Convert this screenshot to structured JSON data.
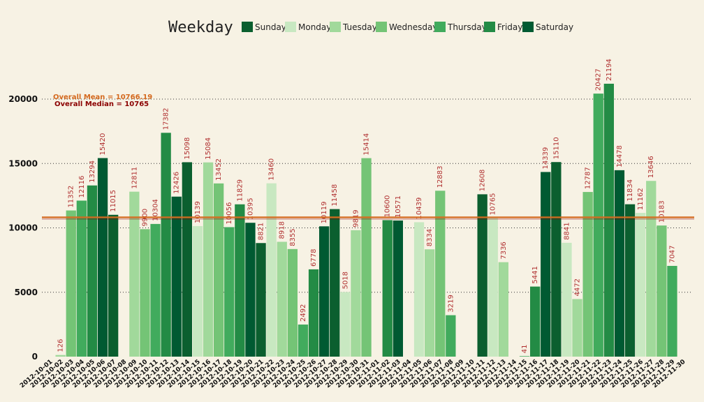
{
  "chart_data": {
    "type": "bar",
    "legend_title": "Weekday",
    "ylim": [
      0,
      23000
    ],
    "yticks": [
      0,
      5000,
      10000,
      15000,
      20000
    ],
    "grid": "horizontal-dotted",
    "legend_position": "top",
    "colors": {
      "Sunday": "#0b5f2f",
      "Monday": "#c8e8c1",
      "Tuesday": "#a1d99b",
      "Wednesday": "#74c476",
      "Thursday": "#41ab5d",
      "Friday": "#238b45",
      "Saturday": "#005a32",
      "mean_line": "#d4691e",
      "median_line": "#8b0000",
      "label_color": "#b03030"
    },
    "series": [
      {
        "name": "Sunday"
      },
      {
        "name": "Monday"
      },
      {
        "name": "Tuesday"
      },
      {
        "name": "Wednesday"
      },
      {
        "name": "Thursday"
      },
      {
        "name": "Friday"
      },
      {
        "name": "Saturday"
      }
    ],
    "categories": [
      "2012-10-01",
      "2012-10-02",
      "2012-10-03",
      "2012-10-04",
      "2012-10-05",
      "2012-10-06",
      "2012-10-07",
      "2012-10-08",
      "2012-10-09",
      "2012-10-10",
      "2012-10-11",
      "2012-10-12",
      "2012-10-13",
      "2012-10-14",
      "2012-10-15",
      "2012-10-16",
      "2012-10-17",
      "2012-10-18",
      "2012-10-19",
      "2012-10-20",
      "2012-10-21",
      "2012-10-22",
      "2012-10-23",
      "2012-10-24",
      "2012-10-25",
      "2012-10-26",
      "2012-10-27",
      "2012-10-28",
      "2012-10-29",
      "2012-10-30",
      "2012-10-31",
      "2012-11-01",
      "2012-11-02",
      "2012-11-03",
      "2012-11-04",
      "2012-11-05",
      "2012-11-06",
      "2012-11-07",
      "2012-11-08",
      "2012-11-09",
      "2012-11-10",
      "2012-11-11",
      "2012-11-12",
      "2012-11-13",
      "2012-11-14",
      "2012-11-15",
      "2012-11-16",
      "2012-11-17",
      "2012-11-18",
      "2012-11-19",
      "2012-11-20",
      "2012-11-21",
      "2012-11-22",
      "2012-11-23",
      "2012-11-24",
      "2012-11-25",
      "2012-11-26",
      "2012-11-27",
      "2012-11-28",
      "2012-11-29",
      "2012-11-30"
    ],
    "values": [
      null,
      126,
      11352,
      12116,
      13294,
      15420,
      11015,
      null,
      12811,
      9900,
      10304,
      17382,
      12426,
      15098,
      10139,
      15084,
      13452,
      10056,
      11829,
      10395,
      8821,
      13460,
      8918,
      8355,
      2492,
      6778,
      10119,
      11458,
      5018,
      9819,
      15414,
      null,
      10600,
      10571,
      null,
      10439,
      8334,
      12883,
      3219,
      null,
      null,
      12608,
      10765,
      7336,
      null,
      41,
      5441,
      14339,
      15110,
      8841,
      4472,
      12787,
      20427,
      21194,
      14478,
      11834,
      11162,
      13646,
      10183,
      7047,
      null
    ],
    "weekdays": [
      "Monday",
      "Tuesday",
      "Wednesday",
      "Thursday",
      "Friday",
      "Saturday",
      "Sunday",
      "Monday",
      "Tuesday",
      "Wednesday",
      "Thursday",
      "Friday",
      "Saturday",
      "Sunday",
      "Monday",
      "Tuesday",
      "Wednesday",
      "Thursday",
      "Friday",
      "Saturday",
      "Sunday",
      "Monday",
      "Tuesday",
      "Wednesday",
      "Thursday",
      "Friday",
      "Saturday",
      "Sunday",
      "Monday",
      "Tuesday",
      "Wednesday",
      "Thursday",
      "Friday",
      "Saturday",
      "Sunday",
      "Monday",
      "Tuesday",
      "Wednesday",
      "Thursday",
      "Friday",
      "Saturday",
      "Sunday",
      "Monday",
      "Tuesday",
      "Wednesday",
      "Thursday",
      "Friday",
      "Saturday",
      "Sunday",
      "Monday",
      "Tuesday",
      "Wednesday",
      "Thursday",
      "Friday",
      "Saturday",
      "Sunday",
      "Monday",
      "Tuesday",
      "Wednesday",
      "Thursday",
      "Friday"
    ],
    "annotations": {
      "mean_label": "Overall Mean =  10766.19",
      "mean_value": 10766.19,
      "median_label": "Overall Median =  10765",
      "median_value": 10765
    }
  }
}
